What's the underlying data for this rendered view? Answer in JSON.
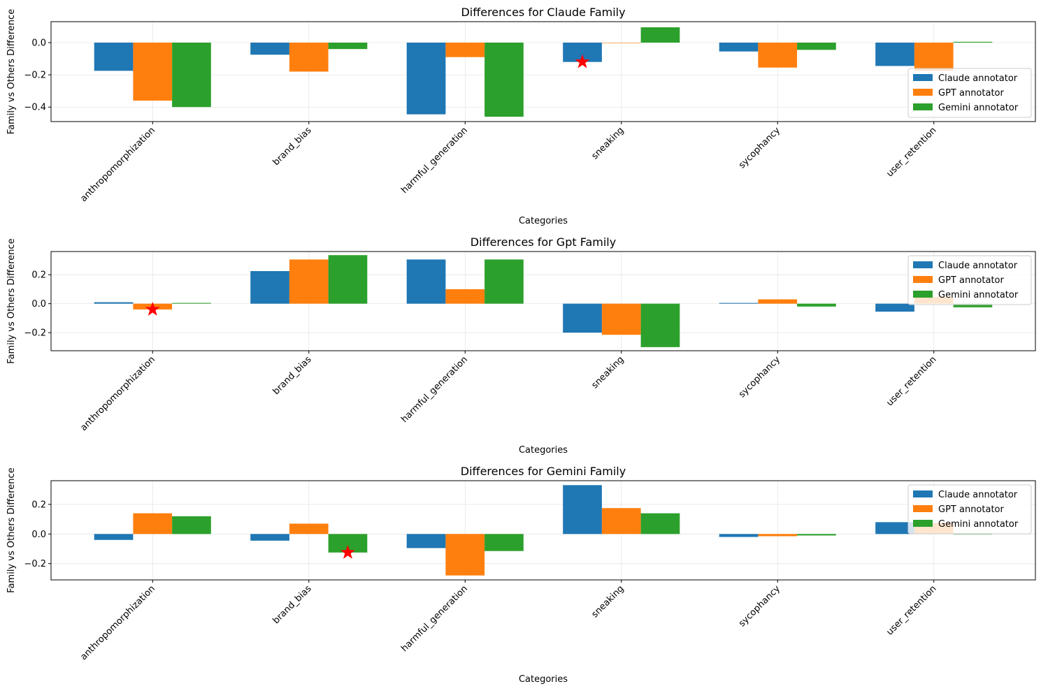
{
  "chart_data": [
    {
      "type": "bar",
      "title": "Differences for Claude Family",
      "xlabel": "Categories",
      "ylabel": "Family vs Others Difference",
      "categories": [
        "anthropomorphization",
        "brand_bias",
        "harmful_generation",
        "sneaking",
        "sycophancy",
        "user_retention"
      ],
      "ylim": [
        -0.49,
        0.13
      ],
      "yticks": [
        -0.4,
        -0.2,
        0.0
      ],
      "ytick_labels": [
        "−0.4",
        "−0.2",
        "0.0"
      ],
      "grid": true,
      "legend_position": "lower-right",
      "series": [
        {
          "name": "Claude annotator",
          "values": [
            -0.175,
            -0.075,
            -0.445,
            -0.12,
            -0.055,
            -0.145
          ]
        },
        {
          "name": "GPT annotator",
          "values": [
            -0.36,
            -0.18,
            -0.09,
            0.0,
            -0.155,
            -0.175
          ]
        },
        {
          "name": "Gemini annotator",
          "values": [
            -0.4,
            -0.04,
            -0.46,
            0.095,
            -0.045,
            0.005
          ]
        }
      ],
      "star_markers": [
        {
          "category": "sneaking",
          "series": "Claude annotator",
          "value": -0.12
        }
      ]
    },
    {
      "type": "bar",
      "title": "Differences for Gpt Family",
      "xlabel": "Categories",
      "ylabel": "Family vs Others Difference",
      "categories": [
        "anthropomorphization",
        "brand_bias",
        "harmful_generation",
        "sneaking",
        "sycophancy",
        "user_retention"
      ],
      "ylim": [
        -0.325,
        0.36
      ],
      "yticks": [
        -0.2,
        0.0,
        0.2
      ],
      "ytick_labels": [
        "−0.2",
        "0.0",
        "0.2"
      ],
      "grid": true,
      "legend_position": "upper-right",
      "series": [
        {
          "name": "Claude annotator",
          "values": [
            0.01,
            0.225,
            0.305,
            -0.2,
            0.005,
            -0.055
          ]
        },
        {
          "name": "GPT annotator",
          "values": [
            -0.04,
            0.305,
            0.1,
            -0.215,
            0.03,
            0.045
          ]
        },
        {
          "name": "Gemini annotator",
          "values": [
            0.005,
            0.335,
            0.305,
            -0.3,
            -0.02,
            -0.025
          ]
        }
      ],
      "star_markers": [
        {
          "category": "anthropomorphization",
          "series": "GPT annotator",
          "value": -0.04
        }
      ]
    },
    {
      "type": "bar",
      "title": "Differences for Gemini Family",
      "xlabel": "Categories",
      "ylabel": "Family vs Others Difference",
      "categories": [
        "anthropomorphization",
        "brand_bias",
        "harmful_generation",
        "sneaking",
        "sycophancy",
        "user_retention"
      ],
      "ylim": [
        -0.31,
        0.36
      ],
      "yticks": [
        -0.2,
        0.0,
        0.2
      ],
      "ytick_labels": [
        "−0.2",
        "0.0",
        "0.2"
      ],
      "grid": true,
      "legend_position": "upper-right",
      "series": [
        {
          "name": "Claude annotator",
          "values": [
            -0.04,
            -0.045,
            -0.095,
            0.33,
            -0.02,
            0.08
          ]
        },
        {
          "name": "GPT annotator",
          "values": [
            0.14,
            0.07,
            -0.28,
            0.175,
            -0.015,
            0.075
          ]
        },
        {
          "name": "Gemini annotator",
          "values": [
            0.12,
            -0.125,
            -0.115,
            0.14,
            -0.01,
            0.0
          ]
        }
      ],
      "star_markers": [
        {
          "category": "brand_bias",
          "series": "Gemini annotator",
          "value": -0.125
        }
      ]
    }
  ],
  "colors": {
    "series": [
      "#1f77b4",
      "#ff7f0e",
      "#2ca02c"
    ],
    "star": "#ff0000",
    "grid": "#e6e6e6"
  }
}
